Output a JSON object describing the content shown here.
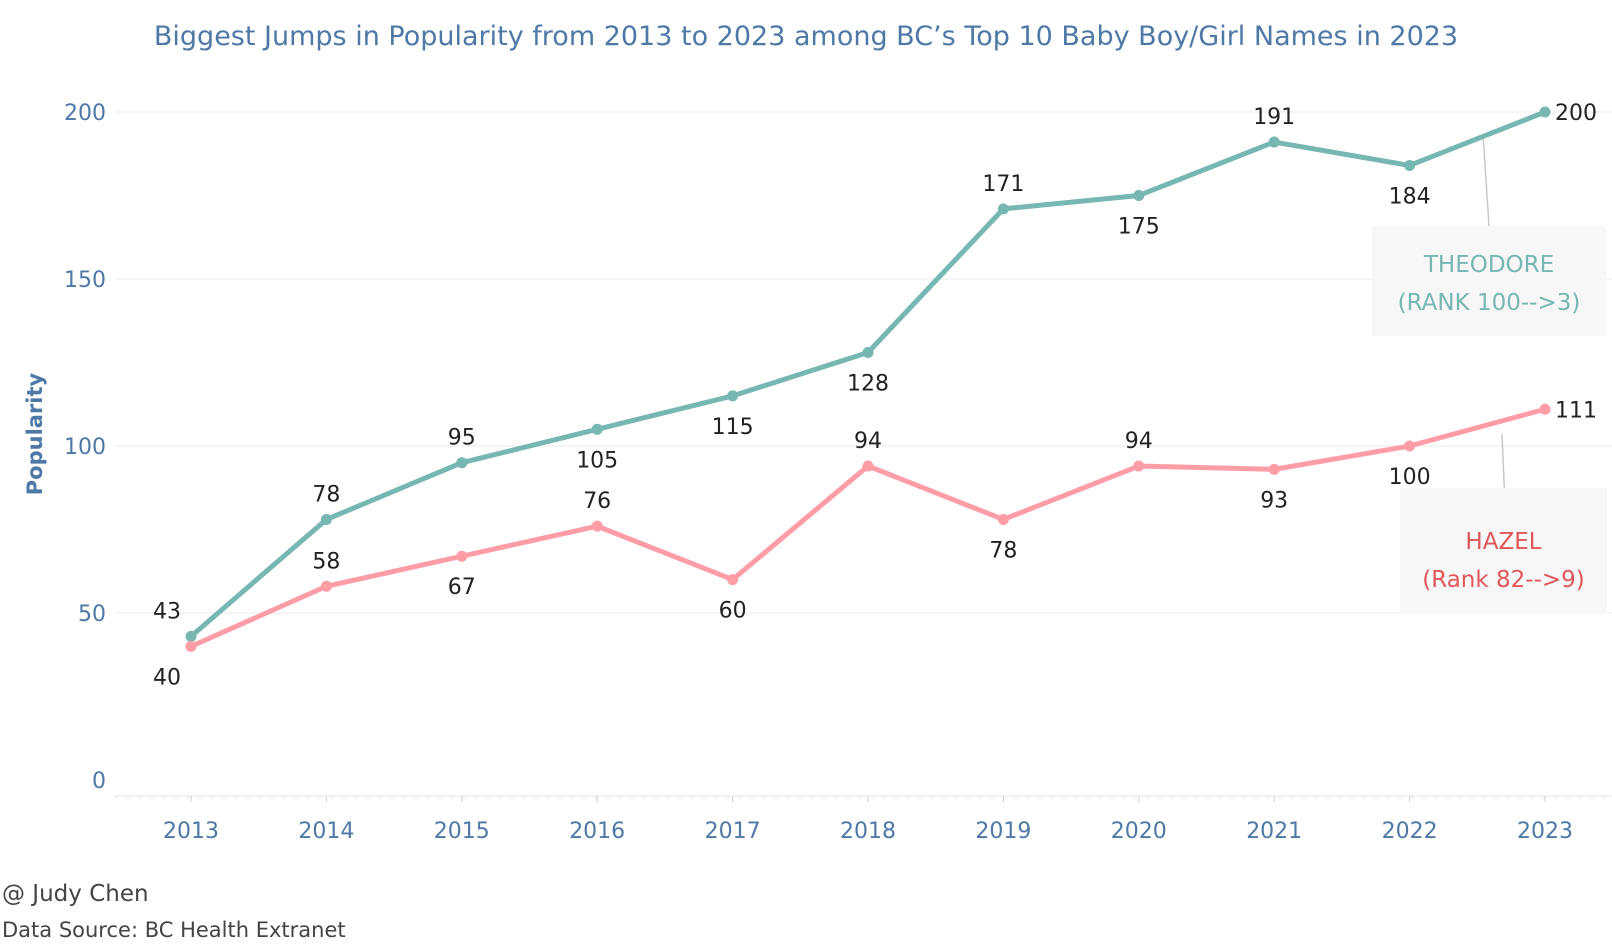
{
  "footer": {
    "author": "@ Judy Chen",
    "source": "Data Source: BC Health Extranet"
  },
  "chart_data": {
    "type": "line",
    "title": "Biggest Jumps in Popularity from 2013 to 2023 among BC’s Top 10 Baby Boy/Girl Names in 2023",
    "xlabel": "",
    "ylabel": "Popularity",
    "categories": [
      "2013",
      "2014",
      "2015",
      "2016",
      "2017",
      "2018",
      "2019",
      "2020",
      "2021",
      "2022",
      "2023"
    ],
    "ylim": [
      0,
      200
    ],
    "yticks": [
      0,
      50,
      100,
      150,
      200
    ],
    "grid": true,
    "series": [
      {
        "name": "THEODORE",
        "callout": [
          "THEODORE",
          "(RANK 100-->3)"
        ],
        "color": "#76b7b2",
        "text_color": "#76b7b2",
        "values": [
          43,
          78,
          95,
          105,
          115,
          128,
          171,
          175,
          191,
          184,
          200
        ],
        "label_positions": [
          "above",
          "above",
          "above",
          "below",
          "below",
          "below",
          "above",
          "below",
          "above",
          "below",
          "right"
        ]
      },
      {
        "name": "HAZEL",
        "callout": [
          "HAZEL",
          "(Rank 82-->9)"
        ],
        "color": "#ff9da7",
        "text_color": "#e15759",
        "values": [
          40,
          58,
          67,
          76,
          60,
          94,
          78,
          94,
          93,
          100,
          111
        ],
        "label_positions": [
          "below",
          "above",
          "below",
          "above",
          "below",
          "above",
          "below",
          "above",
          "below",
          "below",
          "right"
        ]
      }
    ]
  }
}
